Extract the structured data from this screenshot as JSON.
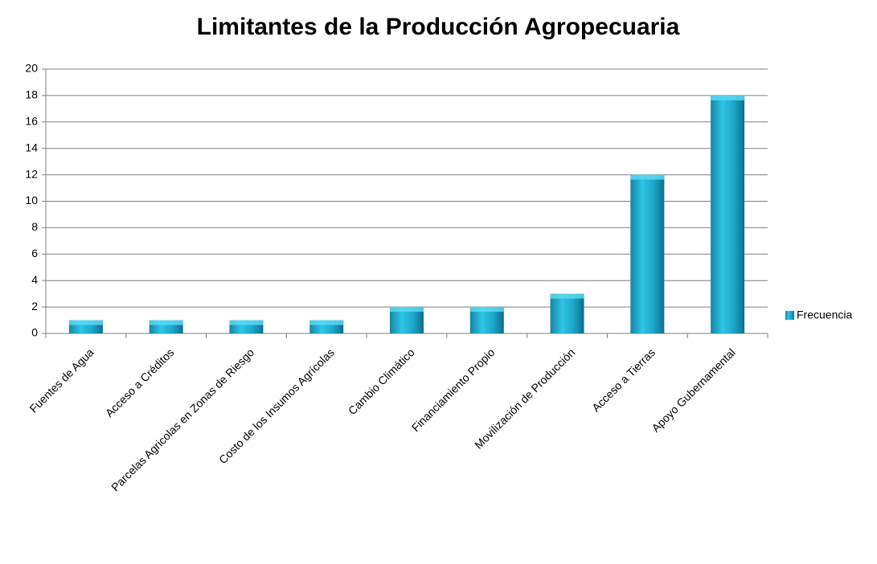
{
  "chart_data": {
    "type": "bar",
    "title": "Limitantes de la Producción Agropecuaria",
    "categories": [
      "Fuentes de Agua",
      "Acceso a Créditos",
      "Parcelas Agricolas en Zonas de Riesgo",
      "Costo de los Insumos Agrícolas",
      "Cambio Climático",
      "Financiamiento Propio",
      "Movilización de Producción",
      "Acceso a Tierras",
      "Apoyo Gubernamental"
    ],
    "series": [
      {
        "name": "Frecuencia",
        "color": "#1fa6c8",
        "values": [
          1,
          1,
          1,
          1,
          2,
          2,
          3,
          12,
          18
        ]
      }
    ],
    "ylim": [
      0,
      20
    ],
    "yticks": [
      0,
      2,
      4,
      6,
      8,
      10,
      12,
      14,
      16,
      18,
      20
    ],
    "grid": true,
    "legend": "right"
  }
}
